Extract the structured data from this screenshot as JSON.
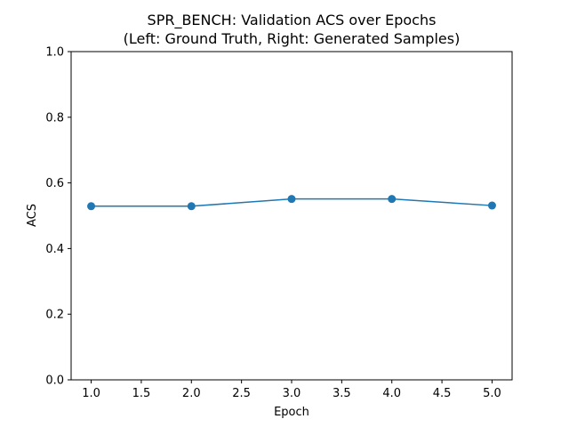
{
  "chart_data": {
    "type": "line",
    "title": "SPR_BENCH: Validation ACS over Epochs",
    "subtitle": "(Left: Ground Truth, Right: Generated Samples)",
    "xlabel": "Epoch",
    "ylabel": "ACS",
    "xlim": [
      0.8,
      5.2
    ],
    "ylim": [
      0.0,
      1.0
    ],
    "xticks": [
      "1.0",
      "1.5",
      "2.0",
      "2.5",
      "3.0",
      "3.5",
      "4.0",
      "4.5",
      "5.0"
    ],
    "yticks": [
      "0.0",
      "0.2",
      "0.4",
      "0.6",
      "0.8",
      "1.0"
    ],
    "grid": false,
    "series": [
      {
        "color": "#1f77b4",
        "x": [
          1,
          2,
          3,
          4,
          5
        ],
        "y": [
          0.529,
          0.529,
          0.551,
          0.551,
          0.531
        ]
      }
    ]
  }
}
